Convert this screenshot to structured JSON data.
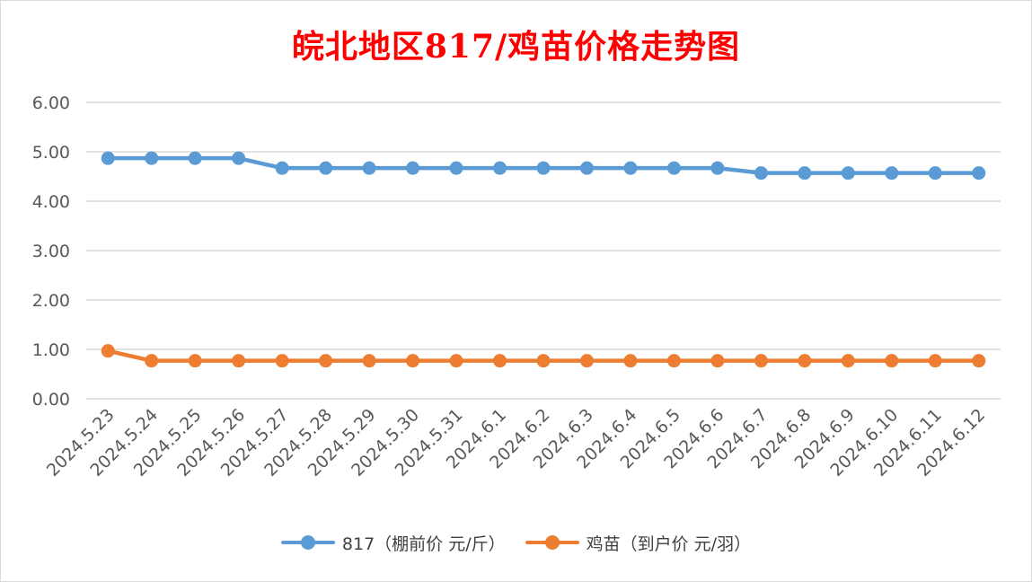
{
  "chart_data": {
    "type": "line",
    "title": "皖北地区817/鸡苗价格走势图",
    "xlabel": "",
    "ylabel": "",
    "ylim": [
      0,
      6
    ],
    "yticks": [
      "0.00",
      "1.00",
      "2.00",
      "3.00",
      "4.00",
      "5.00",
      "6.00"
    ],
    "grid": true,
    "legend_position": "bottom",
    "categories": [
      "2024.5.23",
      "2024.5.24",
      "2024.5.25",
      "2024.5.26",
      "2024.5.27",
      "2024.5.28",
      "2024.5.29",
      "2024.5.30",
      "2024.5.31",
      "2024.6.1",
      "2024.6.2",
      "2024.6.3",
      "2024.6.4",
      "2024.6.5",
      "2024.6.6",
      "2024.6.7",
      "2024.6.8",
      "2024.6.9",
      "2024.6.10",
      "2024.6.11",
      "2024.6.12"
    ],
    "series": [
      {
        "name": "817（棚前价 元/斤）",
        "color": "#5b9bd5",
        "values": [
          4.87,
          4.87,
          4.87,
          4.87,
          4.67,
          4.67,
          4.67,
          4.67,
          4.67,
          4.67,
          4.67,
          4.67,
          4.67,
          4.67,
          4.67,
          4.57,
          4.57,
          4.57,
          4.57,
          4.57,
          4.57
        ]
      },
      {
        "name": "鸡苗（到户价 元/羽）",
        "color": "#ed7d31",
        "values": [
          0.97,
          0.77,
          0.77,
          0.77,
          0.77,
          0.77,
          0.77,
          0.77,
          0.77,
          0.77,
          0.77,
          0.77,
          0.77,
          0.77,
          0.77,
          0.77,
          0.77,
          0.77,
          0.77,
          0.77,
          0.77
        ]
      }
    ],
    "title_color": "#ff0000",
    "gridline_color": "#d9d9d9",
    "tick_color": "#595959"
  }
}
